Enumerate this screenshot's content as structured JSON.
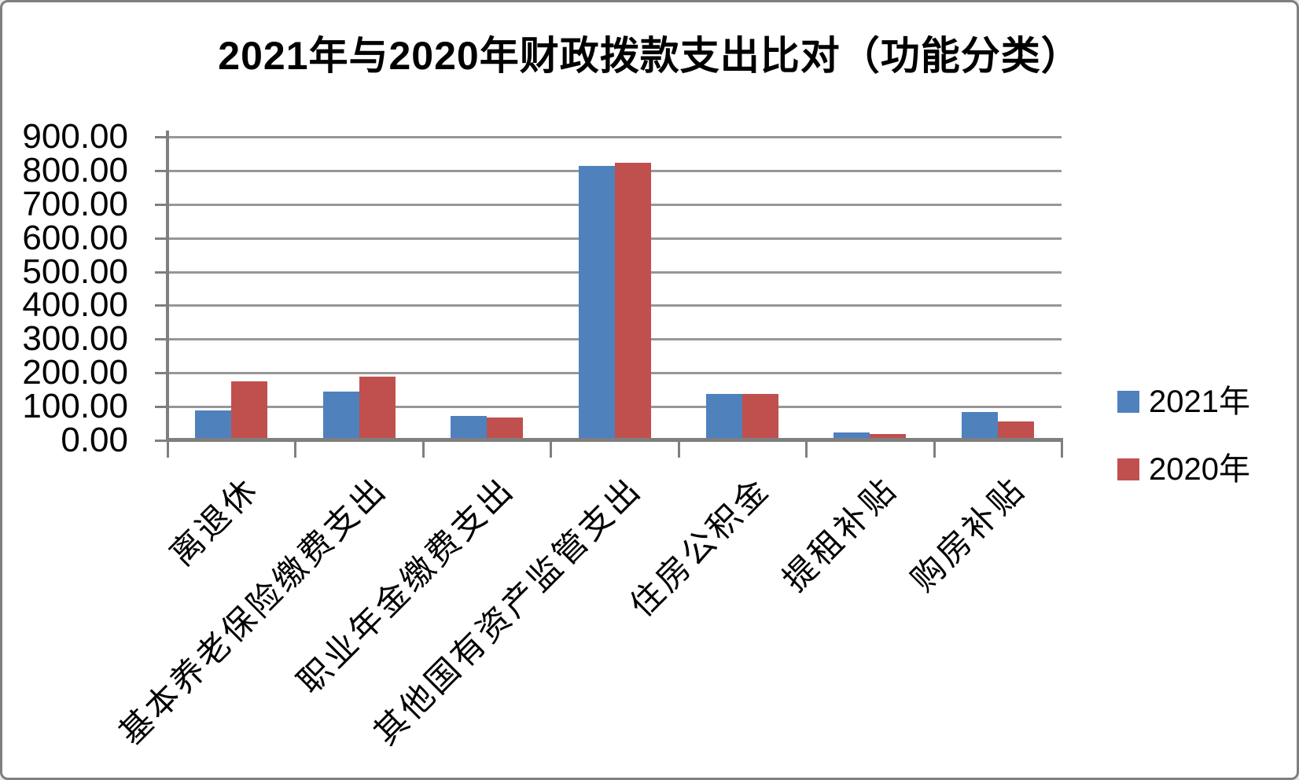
{
  "chart_data": {
    "type": "bar",
    "title": "2021年与2020年财政拨款支出比对（功能分类）",
    "categories": [
      "离退休",
      "基本养老保险缴费支出",
      "职业年金缴费支出",
      "其他国有资产监管支出",
      "住房公积金",
      "提租补贴",
      "购房补贴"
    ],
    "series": [
      {
        "name": "2021年",
        "color": "#4F81BD",
        "values": [
          88,
          145,
          72,
          814,
          137,
          23,
          85
        ]
      },
      {
        "name": "2020年",
        "color": "#C0504D",
        "values": [
          175,
          190,
          68,
          823,
          137,
          19,
          55
        ]
      }
    ],
    "ylim": [
      0,
      900
    ],
    "y_tick_step": 100,
    "y_tick_labels": [
      "900.00",
      "800.00",
      "700.00",
      "600.00",
      "500.00",
      "400.00",
      "300.00",
      "200.00",
      "100.00",
      "0.00"
    ],
    "xlabel": "",
    "ylabel": "",
    "grid": true,
    "legend_position": "right"
  },
  "colors": {
    "gridline": "#979797",
    "axis": "#7f7f7f",
    "frame_border": "#7f7f7f",
    "background": "#ffffff",
    "text": "#000000"
  }
}
